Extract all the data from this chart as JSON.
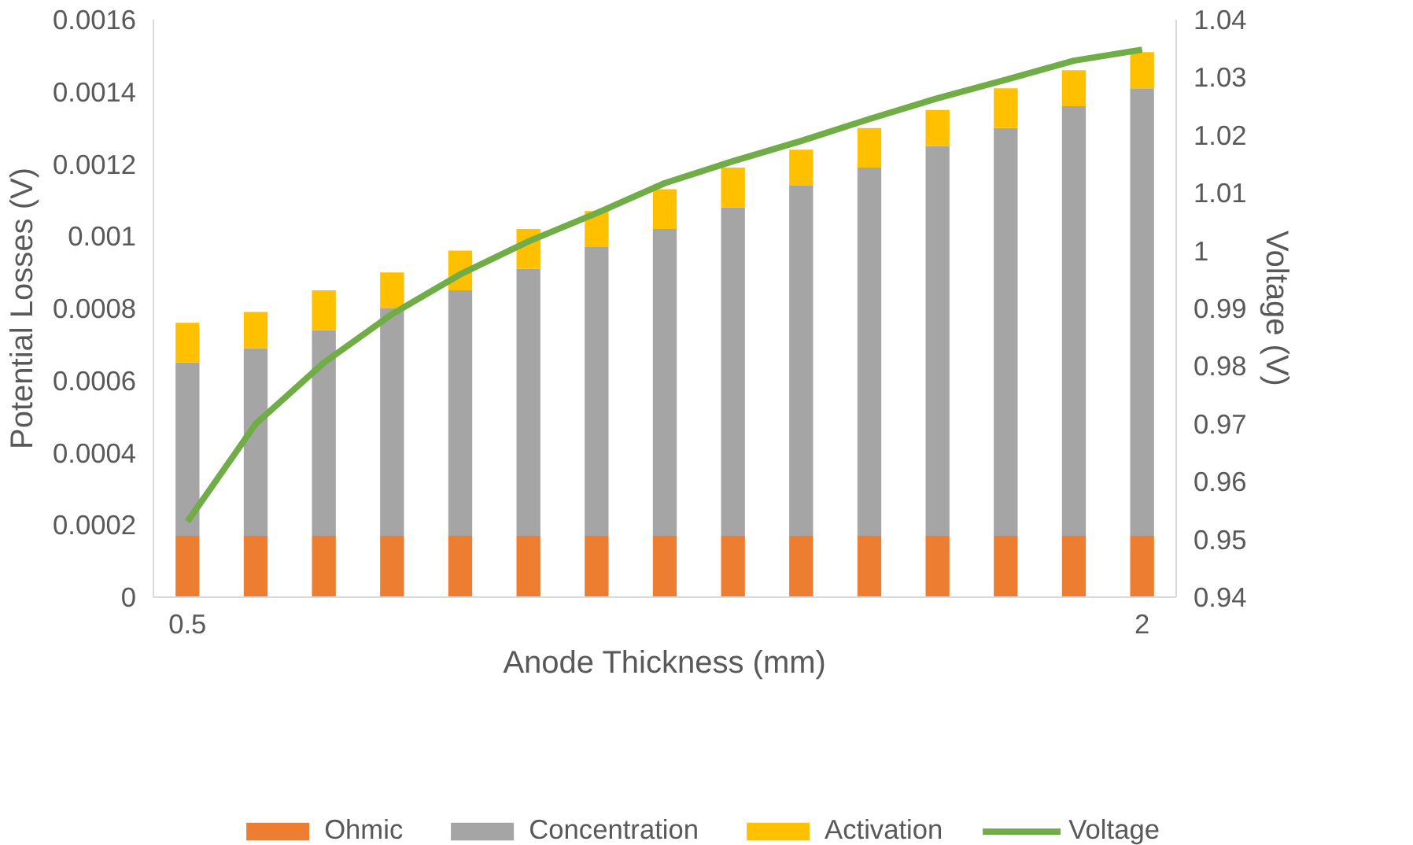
{
  "chart_data": {
    "type": "bar",
    "stacked": true,
    "xlabel": "Anode Thickness (mm)",
    "ylabel": "Potential Losses (V)",
    "y2label": "Voltage (V)",
    "categories": [
      "0.5",
      null,
      null,
      null,
      null,
      null,
      null,
      null,
      null,
      null,
      null,
      null,
      null,
      null,
      "2"
    ],
    "ylim": [
      0,
      0.0016
    ],
    "yticks": [
      0,
      0.0002,
      0.0004,
      0.0006,
      0.0008,
      0.001,
      0.0012,
      0.0014,
      0.0016
    ],
    "y2lim": [
      0.94,
      1.04
    ],
    "y2ticks": [
      0.94,
      0.95,
      0.96,
      0.97,
      0.98,
      0.99,
      1,
      1.01,
      1.02,
      1.03,
      1.04
    ],
    "grid": false,
    "legend": "bottom",
    "series": [
      {
        "name": "Ohmic",
        "color": "#ed7d31",
        "values": [
          0.00017,
          0.00017,
          0.00017,
          0.00017,
          0.00017,
          0.00017,
          0.00017,
          0.00017,
          0.00017,
          0.00017,
          0.00017,
          0.00017,
          0.00017,
          0.00017,
          0.00017
        ]
      },
      {
        "name": "Concentration",
        "color": "#a5a5a5",
        "values": [
          0.00048,
          0.00052,
          0.00057,
          0.00063,
          0.00068,
          0.00074,
          0.0008,
          0.00085,
          0.00091,
          0.00097,
          0.00102,
          0.00108,
          0.00113,
          0.00119,
          0.00124
        ]
      },
      {
        "name": "Activation",
        "color": "#ffc000",
        "values": [
          0.00011,
          0.0001,
          0.00011,
          0.0001,
          0.00011,
          0.00011,
          0.0001,
          0.00011,
          0.00011,
          0.0001,
          0.00011,
          0.0001,
          0.00011,
          0.0001,
          0.0001
        ]
      },
      {
        "name": "Voltage",
        "color": "#70ad47",
        "type": "line",
        "axis": "y2",
        "values": [
          0.9531,
          0.97,
          0.9806,
          0.989,
          0.9959,
          1.0016,
          1.0065,
          1.0117,
          1.0155,
          1.019,
          1.0228,
          1.0264,
          1.0296,
          1.0329,
          1.0348
        ]
      }
    ]
  }
}
